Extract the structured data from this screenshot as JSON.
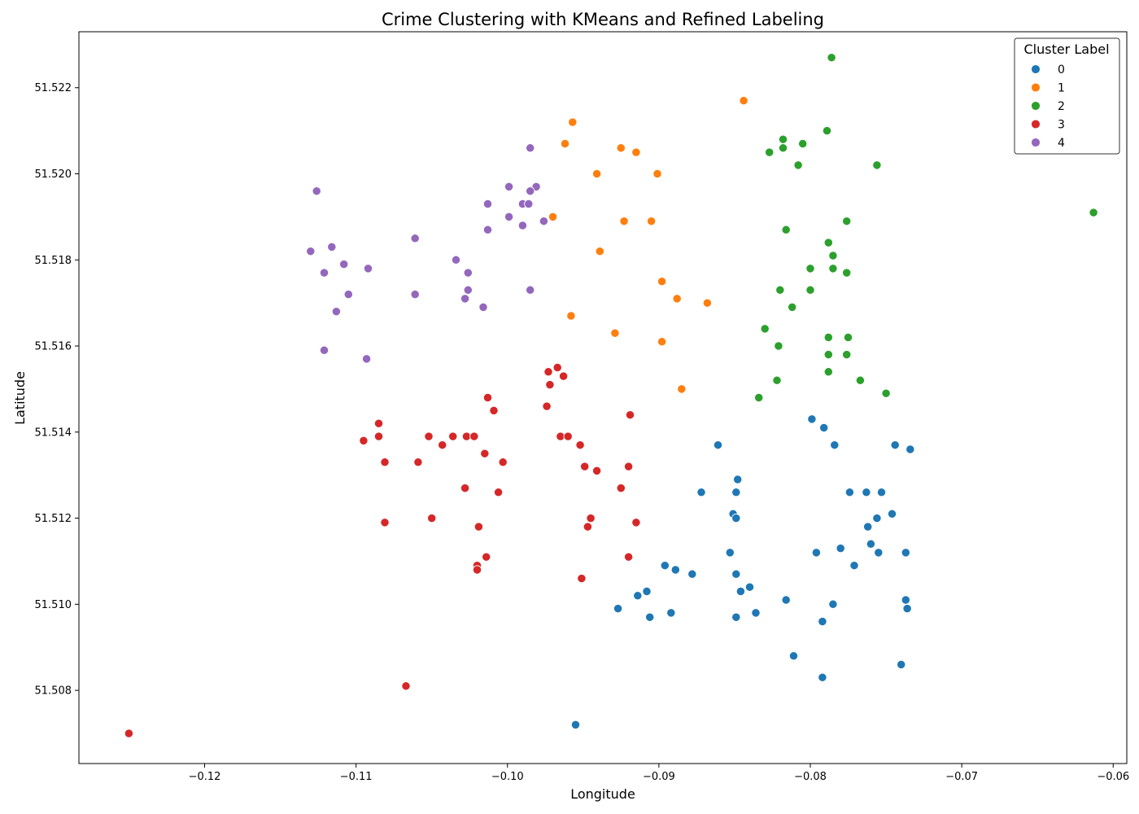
{
  "chart_data": {
    "type": "scatter",
    "title": "Crime Clustering with KMeans and Refined Labeling",
    "xlabel": "Longitude",
    "ylabel": "Latitude",
    "xlim": [
      -0.1283,
      -0.0591
    ],
    "ylim": [
      51.5063,
      51.5233
    ],
    "xticks": [
      -0.12,
      -0.11,
      -0.1,
      -0.09,
      -0.08,
      -0.07,
      -0.06
    ],
    "xtick_labels": [
      "−0.12",
      "−0.11",
      "−0.10",
      "−0.09",
      "−0.08",
      "−0.07",
      "−0.06"
    ],
    "yticks": [
      51.508,
      51.51,
      51.512,
      51.514,
      51.516,
      51.518,
      51.52,
      51.522
    ],
    "ytick_labels": [
      "51.508",
      "51.510",
      "51.512",
      "51.514",
      "51.516",
      "51.518",
      "51.520",
      "51.522"
    ],
    "grid": false,
    "legend": {
      "title": "Cluster Label",
      "placement": "top-right"
    },
    "series": [
      {
        "name": "0",
        "color": "#1f77b4",
        "points": [
          [
            -0.0799,
            51.5143
          ],
          [
            -0.0791,
            51.5141
          ],
          [
            -0.0784,
            51.5137
          ],
          [
            -0.0744,
            51.5137
          ],
          [
            -0.0734,
            51.5136
          ],
          [
            -0.0861,
            51.5137
          ],
          [
            -0.0848,
            51.5129
          ],
          [
            -0.0872,
            51.5126
          ],
          [
            -0.0849,
            51.5126
          ],
          [
            -0.0774,
            51.5126
          ],
          [
            -0.0763,
            51.5126
          ],
          [
            -0.0753,
            51.5126
          ],
          [
            -0.0851,
            51.5121
          ],
          [
            -0.0849,
            51.512
          ],
          [
            -0.0746,
            51.5121
          ],
          [
            -0.0756,
            51.512
          ],
          [
            -0.0762,
            51.5118
          ],
          [
            -0.076,
            51.5114
          ],
          [
            -0.078,
            51.5113
          ],
          [
            -0.0796,
            51.5112
          ],
          [
            -0.0755,
            51.5112
          ],
          [
            -0.0737,
            51.5112
          ],
          [
            -0.0853,
            51.5112
          ],
          [
            -0.0896,
            51.5109
          ],
          [
            -0.0889,
            51.5108
          ],
          [
            -0.0771,
            51.5109
          ],
          [
            -0.0878,
            51.5107
          ],
          [
            -0.0849,
            51.5107
          ],
          [
            -0.084,
            51.5104
          ],
          [
            -0.0846,
            51.5103
          ],
          [
            -0.0908,
            51.5103
          ],
          [
            -0.0914,
            51.5102
          ],
          [
            -0.0816,
            51.5101
          ],
          [
            -0.0737,
            51.5101
          ],
          [
            -0.0785,
            51.51
          ],
          [
            -0.0736,
            51.5099
          ],
          [
            -0.0927,
            51.5099
          ],
          [
            -0.0906,
            51.5097
          ],
          [
            -0.0892,
            51.5098
          ],
          [
            -0.0849,
            51.5097
          ],
          [
            -0.0836,
            51.5098
          ],
          [
            -0.0792,
            51.5096
          ],
          [
            -0.0811,
            51.5088
          ],
          [
            -0.074,
            51.5086
          ],
          [
            -0.0792,
            51.5083
          ],
          [
            -0.0955,
            51.5072
          ]
        ]
      },
      {
        "name": "1",
        "color": "#ff7f0e",
        "points": [
          [
            -0.0844,
            51.5217
          ],
          [
            -0.0957,
            51.5212
          ],
          [
            -0.0962,
            51.5207
          ],
          [
            -0.0925,
            51.5206
          ],
          [
            -0.0915,
            51.5205
          ],
          [
            -0.0941,
            51.52
          ],
          [
            -0.0901,
            51.52
          ],
          [
            -0.097,
            51.519
          ],
          [
            -0.0923,
            51.5189
          ],
          [
            -0.0905,
            51.5189
          ],
          [
            -0.0939,
            51.5182
          ],
          [
            -0.0898,
            51.5175
          ],
          [
            -0.0888,
            51.5171
          ],
          [
            -0.0868,
            51.517
          ],
          [
            -0.0958,
            51.5167
          ],
          [
            -0.0929,
            51.5163
          ],
          [
            -0.0898,
            51.5161
          ],
          [
            -0.0885,
            51.515
          ]
        ]
      },
      {
        "name": "2",
        "color": "#2ca02c",
        "points": [
          [
            -0.0786,
            51.5227
          ],
          [
            -0.0789,
            51.521
          ],
          [
            -0.0818,
            51.5208
          ],
          [
            -0.0805,
            51.5207
          ],
          [
            -0.0818,
            51.5206
          ],
          [
            -0.0827,
            51.5205
          ],
          [
            -0.0808,
            51.5202
          ],
          [
            -0.0756,
            51.5202
          ],
          [
            -0.0613,
            51.5191
          ],
          [
            -0.0776,
            51.5189
          ],
          [
            -0.0816,
            51.5187
          ],
          [
            -0.0788,
            51.5184
          ],
          [
            -0.0785,
            51.5181
          ],
          [
            -0.08,
            51.5178
          ],
          [
            -0.0785,
            51.5178
          ],
          [
            -0.0776,
            51.5177
          ],
          [
            -0.082,
            51.5173
          ],
          [
            -0.08,
            51.5173
          ],
          [
            -0.0812,
            51.5169
          ],
          [
            -0.083,
            51.5164
          ],
          [
            -0.0788,
            51.5162
          ],
          [
            -0.0775,
            51.5162
          ],
          [
            -0.0821,
            51.516
          ],
          [
            -0.0788,
            51.5158
          ],
          [
            -0.0776,
            51.5158
          ],
          [
            -0.0788,
            51.5154
          ],
          [
            -0.0822,
            51.5152
          ],
          [
            -0.0767,
            51.5152
          ],
          [
            -0.075,
            51.5149
          ],
          [
            -0.0834,
            51.5148
          ]
        ]
      },
      {
        "name": "3",
        "color": "#d62728",
        "points": [
          [
            -0.0967,
            51.5155
          ],
          [
            -0.0973,
            51.5154
          ],
          [
            -0.0963,
            51.5153
          ],
          [
            -0.0972,
            51.5151
          ],
          [
            -0.1013,
            51.5148
          ],
          [
            -0.0974,
            51.5146
          ],
          [
            -0.1009,
            51.5145
          ],
          [
            -0.0919,
            51.5144
          ],
          [
            -0.1085,
            51.5142
          ],
          [
            -0.1085,
            51.5139
          ],
          [
            -0.1052,
            51.5139
          ],
          [
            -0.1036,
            51.5139
          ],
          [
            -0.1027,
            51.5139
          ],
          [
            -0.1022,
            51.5139
          ],
          [
            -0.0965,
            51.5139
          ],
          [
            -0.096,
            51.5139
          ],
          [
            -0.1095,
            51.5138
          ],
          [
            -0.1043,
            51.5137
          ],
          [
            -0.0952,
            51.5137
          ],
          [
            -0.1015,
            51.5135
          ],
          [
            -0.1081,
            51.5133
          ],
          [
            -0.1059,
            51.5133
          ],
          [
            -0.1003,
            51.5133
          ],
          [
            -0.0949,
            51.5132
          ],
          [
            -0.092,
            51.5132
          ],
          [
            -0.0941,
            51.5131
          ],
          [
            -0.1028,
            51.5127
          ],
          [
            -0.1006,
            51.5126
          ],
          [
            -0.0925,
            51.5127
          ],
          [
            -0.105,
            51.512
          ],
          [
            -0.0945,
            51.512
          ],
          [
            -0.0915,
            51.5119
          ],
          [
            -0.1081,
            51.5119
          ],
          [
            -0.1019,
            51.5118
          ],
          [
            -0.0947,
            51.5118
          ],
          [
            -0.1014,
            51.5111
          ],
          [
            -0.092,
            51.5111
          ],
          [
            -0.102,
            51.5109
          ],
          [
            -0.102,
            51.5108
          ],
          [
            -0.0951,
            51.5106
          ],
          [
            -0.1067,
            51.5081
          ],
          [
            -0.125,
            51.507
          ]
        ]
      },
      {
        "name": "4",
        "color": "#9467bd",
        "points": [
          [
            -0.0985,
            51.5206
          ],
          [
            -0.0999,
            51.5197
          ],
          [
            -0.0981,
            51.5197
          ],
          [
            -0.1126,
            51.5196
          ],
          [
            -0.0985,
            51.5196
          ],
          [
            -0.1013,
            51.5193
          ],
          [
            -0.099,
            51.5193
          ],
          [
            -0.0986,
            51.5193
          ],
          [
            -0.0999,
            51.519
          ],
          [
            -0.0976,
            51.5189
          ],
          [
            -0.099,
            51.5188
          ],
          [
            -0.1013,
            51.5187
          ],
          [
            -0.1061,
            51.5185
          ],
          [
            -0.113,
            51.5182
          ],
          [
            -0.1116,
            51.5183
          ],
          [
            -0.1034,
            51.518
          ],
          [
            -0.1108,
            51.5179
          ],
          [
            -0.1092,
            51.5178
          ],
          [
            -0.1026,
            51.5177
          ],
          [
            -0.1121,
            51.5177
          ],
          [
            -0.1026,
            51.5173
          ],
          [
            -0.0985,
            51.5173
          ],
          [
            -0.1061,
            51.5172
          ],
          [
            -0.1105,
            51.5172
          ],
          [
            -0.1028,
            51.5171
          ],
          [
            -0.1016,
            51.5169
          ],
          [
            -0.1113,
            51.5168
          ],
          [
            -0.1121,
            51.5159
          ],
          [
            -0.1093,
            51.5157
          ]
        ]
      }
    ]
  }
}
